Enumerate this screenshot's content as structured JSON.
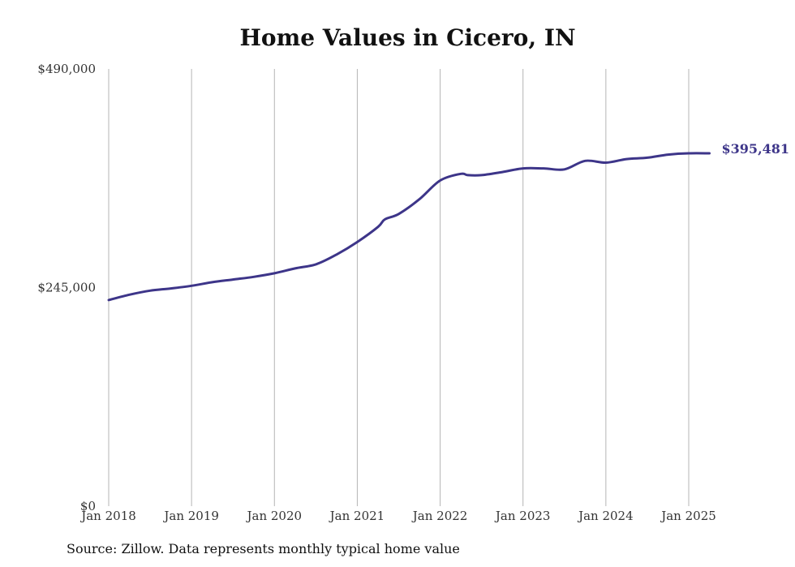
{
  "chart_data": {
    "type": "line",
    "title": "Home Values in Cicero, IN",
    "source": "Source: Zillow. Data represents monthly typical home value",
    "x_ticks": [
      "Jan 2018",
      "Jan 2019",
      "Jan 2020",
      "Jan 2021",
      "Jan 2022",
      "Jan 2023",
      "Jan 2024",
      "Jan 2025"
    ],
    "y_ticks": [
      "$0",
      "$245,000",
      "$490,000"
    ],
    "y_tick_values": [
      0,
      245000,
      490000
    ],
    "ylim": [
      0,
      490000
    ],
    "xlim": [
      "2018-01",
      "2025-04"
    ],
    "grid": "vertical",
    "last_value_label": "$395,481",
    "series": [
      {
        "color": "#3d3589",
        "x": [
          "2018-01",
          "2018-04",
          "2018-07",
          "2018-10",
          "2019-01",
          "2019-04",
          "2019-07",
          "2019-10",
          "2020-01",
          "2020-04",
          "2020-07",
          "2020-10",
          "2021-01",
          "2021-04",
          "2021-05",
          "2021-07",
          "2021-10",
          "2022-01",
          "2022-04",
          "2022-05",
          "2022-07",
          "2022-10",
          "2023-01",
          "2023-04",
          "2023-07",
          "2023-10",
          "2024-01",
          "2024-04",
          "2024-07",
          "2024-10",
          "2025-01",
          "2025-04"
        ],
        "y": [
          231000,
          237000,
          241500,
          244000,
          247000,
          251000,
          254000,
          257000,
          261000,
          266500,
          271000,
          282000,
          296000,
          313000,
          321500,
          327500,
          344000,
          365000,
          372500,
          371000,
          371000,
          374500,
          378500,
          378500,
          377500,
          387000,
          385000,
          389000,
          390500,
          394000,
          395481,
          395481
        ]
      }
    ]
  }
}
